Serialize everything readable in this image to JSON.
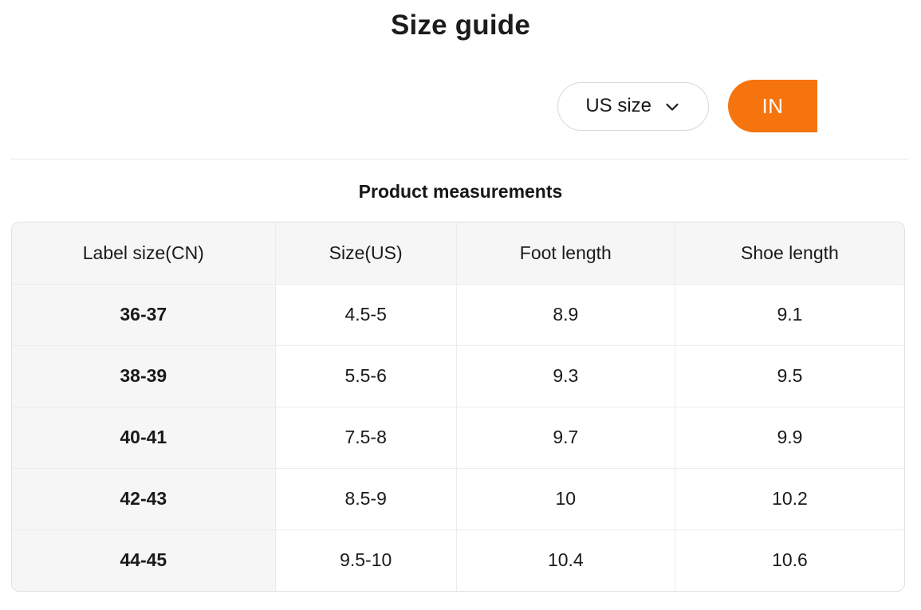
{
  "page": {
    "title": "Size guide"
  },
  "controls": {
    "size_selector": {
      "label": "US size",
      "icon": "chevron-down-icon"
    },
    "unit_toggle": {
      "label": "IN",
      "color": "#F6740E"
    }
  },
  "section": {
    "heading": "Product measurements"
  },
  "table": {
    "columns": [
      "Label size(CN)",
      "Size(US)",
      "Foot length",
      "Shoe length"
    ],
    "rows": [
      [
        "36-37",
        "4.5-5",
        "8.9",
        "9.1"
      ],
      [
        "38-39",
        "5.5-6",
        "9.3",
        "9.5"
      ],
      [
        "40-41",
        "7.5-8",
        "9.7",
        "9.9"
      ],
      [
        "42-43",
        "8.5-9",
        "10",
        "10.2"
      ],
      [
        "44-45",
        "9.5-10",
        "10.4",
        "10.6"
      ]
    ]
  }
}
